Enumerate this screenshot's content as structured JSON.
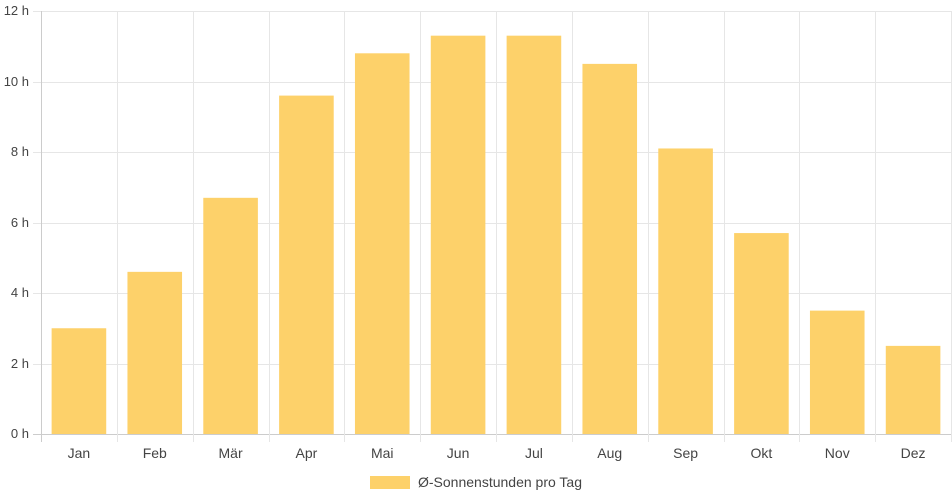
{
  "chart_data": {
    "type": "bar",
    "categories": [
      "Jan",
      "Feb",
      "Mär",
      "Apr",
      "Mai",
      "Jun",
      "Jul",
      "Aug",
      "Sep",
      "Okt",
      "Nov",
      "Dez"
    ],
    "series": [
      {
        "name": "Ø-Sonnenstunden pro Tag",
        "values": [
          3.0,
          4.6,
          6.7,
          9.6,
          10.8,
          11.3,
          11.3,
          10.5,
          8.1,
          5.7,
          3.5,
          2.5
        ],
        "color": "#fdd16a"
      }
    ],
    "title": "",
    "xlabel": "",
    "ylabel": "",
    "ylim": [
      0,
      12
    ],
    "yticks": [
      0,
      2,
      4,
      6,
      8,
      10,
      12
    ],
    "ytick_suffix": " h",
    "grid": true,
    "legend_position": "bottom"
  },
  "colors": {
    "bar": "#fdd16a",
    "grid": "#e6e6e6",
    "axis": "#cccccc",
    "text": "#444444"
  }
}
